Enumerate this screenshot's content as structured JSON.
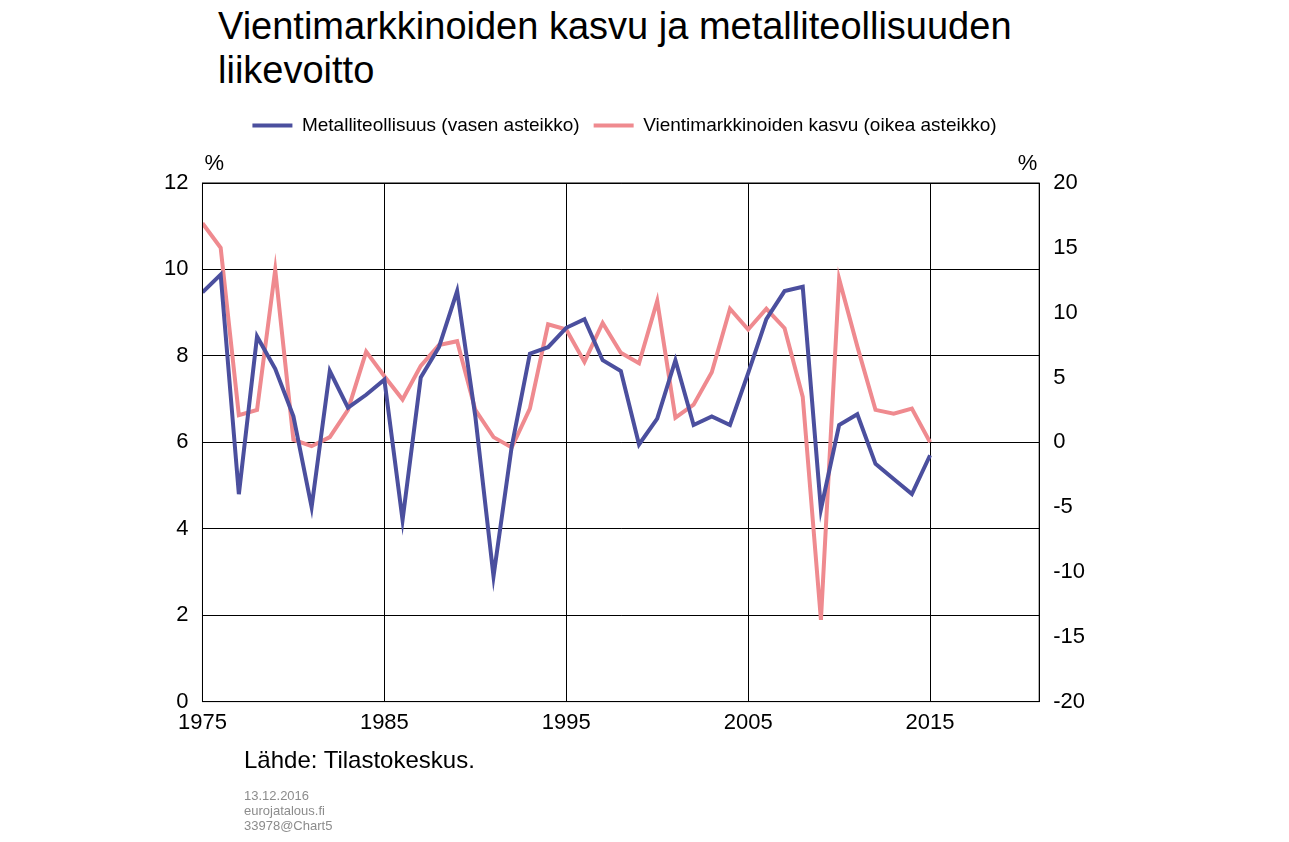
{
  "chart_data": {
    "type": "line",
    "title": "Vientimarkkinoiden kasvu ja metalliteollisuuden liikevoitto",
    "x": [
      1975,
      1976,
      1977,
      1978,
      1979,
      1980,
      1981,
      1982,
      1983,
      1984,
      1985,
      1986,
      1987,
      1988,
      1989,
      1990,
      1991,
      1992,
      1993,
      1994,
      1995,
      1996,
      1997,
      1998,
      1999,
      2000,
      2001,
      2002,
      2003,
      2004,
      2005,
      2006,
      2007,
      2008,
      2009,
      2010,
      2011,
      2012,
      2013,
      2014,
      2015
    ],
    "series": [
      {
        "name": "Metalliteollisuus (vasen asteikko)",
        "color": "#4b4f9e",
        "axis": "y",
        "values": [
          9.47,
          9.88,
          4.8,
          8.45,
          7.7,
          6.6,
          4.5,
          7.65,
          6.8,
          7.1,
          7.45,
          4.2,
          7.5,
          8.2,
          9.5,
          6.6,
          2.9,
          5.9,
          8.05,
          8.2,
          8.65,
          8.85,
          7.9,
          7.65,
          5.95,
          6.55,
          7.9,
          6.4,
          6.6,
          6.4,
          7.6,
          8.85,
          9.5,
          9.6,
          4.45,
          6.4,
          6.65,
          5.5,
          5.15,
          4.8,
          5.7
        ]
      },
      {
        "name": "Vientimarkkinoiden kasvu (oikea asteikko)",
        "color": "#ef8a8f",
        "axis": "y2",
        "values": [
          16.9,
          15,
          2.1,
          2.5,
          13.3,
          0.2,
          -0.3,
          0.4,
          2.5,
          7.0,
          5.1,
          3.3,
          5.9,
          7.5,
          7.8,
          2.5,
          0.4,
          -0.4,
          2.6,
          9.1,
          8.7,
          6.2,
          9.2,
          6.9,
          6.1,
          10.9,
          1.9,
          2.9,
          5.4,
          10.3,
          8.7,
          10.3,
          8.8,
          3.5,
          -13.7,
          12.6,
          7.4,
          2.5,
          2.2,
          2.6,
          0.0
        ]
      }
    ],
    "xlim": [
      1975,
      2021
    ],
    "xticks": [
      1975,
      1985,
      1995,
      2005,
      2015
    ],
    "ylim": [
      0,
      12
    ],
    "yticks": [
      0,
      2,
      4,
      6,
      8,
      10,
      12
    ],
    "y2lim": [
      -20,
      20
    ],
    "y2ticks": [
      -20,
      -15,
      -10,
      -5,
      0,
      5,
      10,
      15,
      20
    ],
    "ylabel": "%",
    "y2label": "%",
    "grid": true,
    "legend": "top",
    "source": "Lähde: Tilastokeskus.",
    "footnotes": [
      "13.12.2016",
      "eurojatalous.fi",
      "33978@Chart5"
    ]
  }
}
